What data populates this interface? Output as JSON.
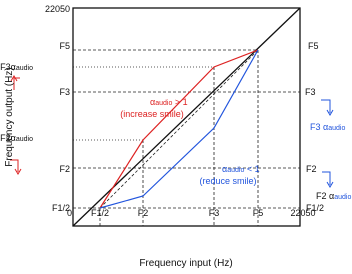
{
  "axes": {
    "y_top": "22050",
    "origin": "0",
    "x_label": "Frequency input (Hz)",
    "y_label": "Frequency output (Hz)",
    "x_ticks": [
      "F1/2",
      "F2",
      "F3",
      "F5",
      "22050"
    ],
    "y_ticks": [
      "F5",
      "F3",
      "F2",
      "F1/2"
    ]
  },
  "left_labels": [
    {
      "main": "F3α",
      "sub": "audio"
    },
    {
      "main": "F2α",
      "sub": "audio"
    }
  ],
  "right_labels": {
    "f5": "F5",
    "f3": "F3",
    "f3a": {
      "main": "F3 α",
      "sub": "audio"
    },
    "f2": "F2",
    "f2a": {
      "main": "F2 α",
      "sub": "audio"
    },
    "f12": "F1/2"
  },
  "annotations": {
    "red": {
      "main": "α",
      "sub": "audio",
      "rest": " > 1",
      "note": "(increase smile)"
    },
    "blue": {
      "main": "α",
      "sub": "audio",
      "rest": " < 1",
      "note": "(reduce smile)"
    }
  }
}
